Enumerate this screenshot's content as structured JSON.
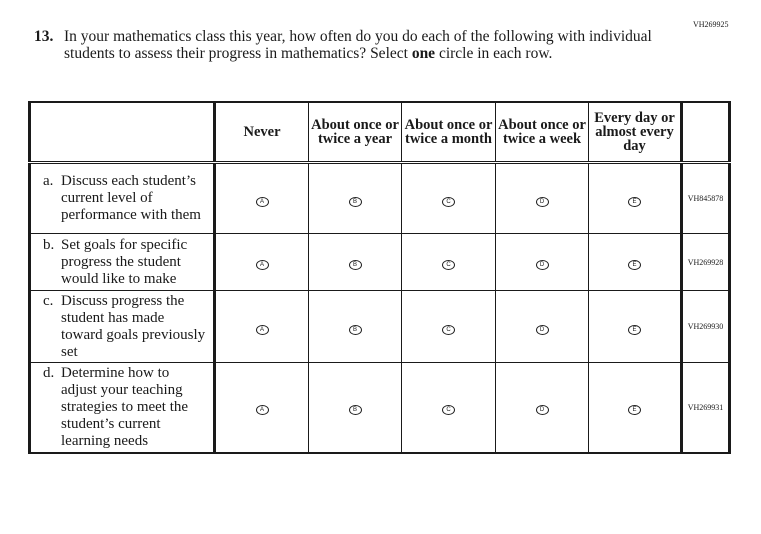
{
  "page_code": "VH269925",
  "question": {
    "number": "13.",
    "text_before": "In your mathematics class this year, how often do you do each of the following with individual students to assess their progress in mathematics? Select ",
    "emphasis": "one",
    "text_after": " circle in each row."
  },
  "columns": [
    "Never",
    "About once or twice a year",
    "About once or twice a month",
    "About once or twice a week",
    "Every day or almost every day"
  ],
  "bubble_letters": [
    "A",
    "B",
    "C",
    "D",
    "E"
  ],
  "rows": [
    {
      "letter": "a.",
      "text": "Discuss each student’s current level of performance with them",
      "code": "VH845878"
    },
    {
      "letter": "b.",
      "text": "Set goals for specific progress the student would like to make",
      "code": "VH269928"
    },
    {
      "letter": "c.",
      "text": "Discuss progress the student has made toward goals previously set",
      "code": "VH269930"
    },
    {
      "letter": "d.",
      "text": "Determine how to adjust your teaching strategies to meet the student’s current learning needs",
      "code": "VH269931"
    }
  ]
}
